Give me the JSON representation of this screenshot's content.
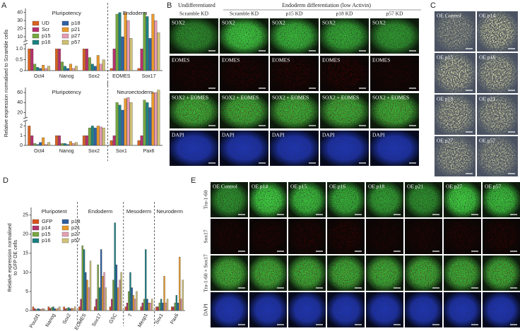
{
  "panel_labels": [
    "A",
    "B",
    "C",
    "D",
    "E"
  ],
  "chart_data": [
    {
      "type": "bar",
      "ylabel": "Relative expression normalised to Scramble cells",
      "categories": [
        "Oct4",
        "Nanog",
        "Sox2",
        "EOMES",
        "Sox17"
      ],
      "group_labels": [
        "Pluripotency",
        "Endoderm"
      ],
      "group_sizes": [
        3,
        2
      ],
      "ylim": [
        0,
        45
      ],
      "ybreak": [
        1.2,
        5
      ],
      "yticks": [
        0,
        0.5,
        {
          "value": 1,
          "label": "1.0"
        },
        10,
        20,
        30,
        40
      ],
      "legend": "upper left",
      "series": [
        {
          "name": "UD",
          "color": "#d9621f",
          "values": [
            1.0,
            1.0,
            1.0,
            0.1,
            0.1
          ]
        },
        {
          "name": "Scr",
          "color": "#b8306e",
          "values": [
            1.0,
            1.0,
            1.0,
            1.0,
            1.0
          ]
        },
        {
          "name": "p15",
          "color": "#74a83f",
          "values": [
            0.3,
            0.4,
            0.6,
            38,
            40
          ]
        },
        {
          "name": "p16",
          "color": "#1b8282",
          "values": [
            0.15,
            0.2,
            0.3,
            40,
            35
          ]
        },
        {
          "name": "p18",
          "color": "#2f62a6",
          "values": [
            0.1,
            0.1,
            0.2,
            10,
            8
          ]
        },
        {
          "name": "p21",
          "color": "#eb9a2b",
          "values": [
            0.25,
            0.3,
            0.7,
            40,
            38
          ]
        },
        {
          "name": "p27",
          "color": "#e69ab4",
          "values": [
            0.1,
            0.1,
            0.3,
            30,
            30
          ]
        },
        {
          "name": "p57",
          "color": "#cfbf72",
          "values": [
            0.2,
            0.2,
            0.5,
            8,
            15
          ]
        }
      ]
    },
    {
      "type": "bar",
      "categories": [
        "Oct4",
        "Nanog",
        "Sox2",
        "Sox1",
        "Pax6"
      ],
      "group_labels": [
        "Pluripotency",
        "Neuroectoderm"
      ],
      "group_sizes": [
        3,
        2
      ],
      "ylim": [
        0,
        70
      ],
      "ybreak": [
        2.5,
        10
      ],
      "yticks": [
        0,
        1,
        2,
        20,
        40,
        60
      ],
      "series": [
        {
          "color": "#d9621f",
          "values": [
            2,
            1,
            1,
            0.5,
            0.5
          ]
        },
        {
          "color": "#b8306e",
          "values": [
            1,
            1,
            1,
            1,
            1
          ]
        },
        {
          "color": "#74a83f",
          "values": [
            0.2,
            0.2,
            1.8,
            40,
            45
          ]
        },
        {
          "color": "#1b8282",
          "values": [
            0.1,
            0.2,
            2,
            35,
            40
          ]
        },
        {
          "color": "#2f62a6",
          "values": [
            0.3,
            0.1,
            1.8,
            25,
            30
          ]
        },
        {
          "color": "#eb9a2b",
          "values": [
            0.8,
            0.4,
            2,
            48,
            60
          ]
        },
        {
          "color": "#e69ab4",
          "values": [
            0.1,
            0.2,
            1.9,
            50,
            60
          ]
        },
        {
          "color": "#cfbf72",
          "values": [
            0.3,
            0.3,
            1.8,
            40,
            65
          ]
        }
      ]
    },
    {
      "type": "bar",
      "ylabel": [
        "Relative expression normalised",
        "to GFP OE cells"
      ],
      "categories": [
        "Pou5f1",
        "Nanog",
        "Sox2",
        "EOMES",
        "Sox17",
        "GSC",
        "T",
        "Mesp1",
        "Sox1",
        "Pax6"
      ],
      "group_labels": [
        "Pluripotent",
        "Endoderm",
        "Mesoderm",
        "Neuroderm"
      ],
      "group_sizes": [
        3,
        3,
        2,
        2
      ],
      "ylim": [
        0,
        27
      ],
      "yticks": [
        0,
        5,
        10,
        15,
        20,
        25
      ],
      "legend": "upper left",
      "series": [
        {
          "name": "GFP",
          "color": "#d9541e",
          "values": [
            1,
            1,
            1,
            1,
            1,
            1,
            1,
            1,
            1,
            1
          ]
        },
        {
          "name": "p14",
          "color": "#b5326c",
          "values": [
            0.5,
            0.6,
            0.5,
            3,
            3,
            3,
            2,
            2,
            1,
            1
          ]
        },
        {
          "name": "p15",
          "color": "#7aa640",
          "values": [
            0.3,
            0.8,
            0.6,
            17,
            12,
            8,
            5,
            3,
            2,
            2
          ]
        },
        {
          "name": "p16",
          "color": "#1a7f82",
          "values": [
            0.5,
            1,
            0.8,
            16,
            6,
            23,
            10,
            16,
            3,
            4
          ]
        },
        {
          "name": "p18",
          "color": "#2e5fa0",
          "values": [
            0.4,
            0.5,
            0.5,
            10,
            16,
            12,
            6,
            3,
            2,
            2
          ]
        },
        {
          "name": "p21",
          "color": "#e89a2a",
          "values": [
            0.3,
            0.4,
            0.6,
            8,
            9,
            6,
            4,
            2,
            9,
            14
          ]
        },
        {
          "name": "p27",
          "color": "#e6a0b4",
          "values": [
            0.5,
            0.6,
            0.5,
            6,
            10,
            8,
            3,
            2,
            2,
            3
          ]
        },
        {
          "name": "p57",
          "color": "#d2c27a",
          "values": [
            0.4,
            1,
            1,
            13,
            6,
            10,
            5,
            3,
            3,
            8
          ]
        }
      ]
    }
  ],
  "panel_b": {
    "undiff": "Undifferentiated",
    "title": "Endoderm differentiation (low Activin)",
    "columns": [
      "Scramble KD",
      "Scramble KD",
      "p15 KD",
      "p18 KD",
      "p57 KD"
    ],
    "rows": [
      "SOX2",
      "EOMES",
      "SOX2 + EOMES",
      "DAPI"
    ]
  },
  "panel_c": {
    "labels": [
      "OE Control",
      "OE p14",
      "OE p15",
      "OE p16",
      "OE p18",
      "OE p21",
      "OE p27",
      "OE p57"
    ]
  },
  "panel_e": {
    "columns": [
      "OE Control",
      "OE p14",
      "OE p15",
      "OE p16",
      "OE p18",
      "OE p21",
      "OE p27",
      "OE p57"
    ],
    "rows": [
      "Tra-1-60",
      "Sox17",
      "Tra-1-60 + Sox17",
      "DAPI"
    ]
  }
}
